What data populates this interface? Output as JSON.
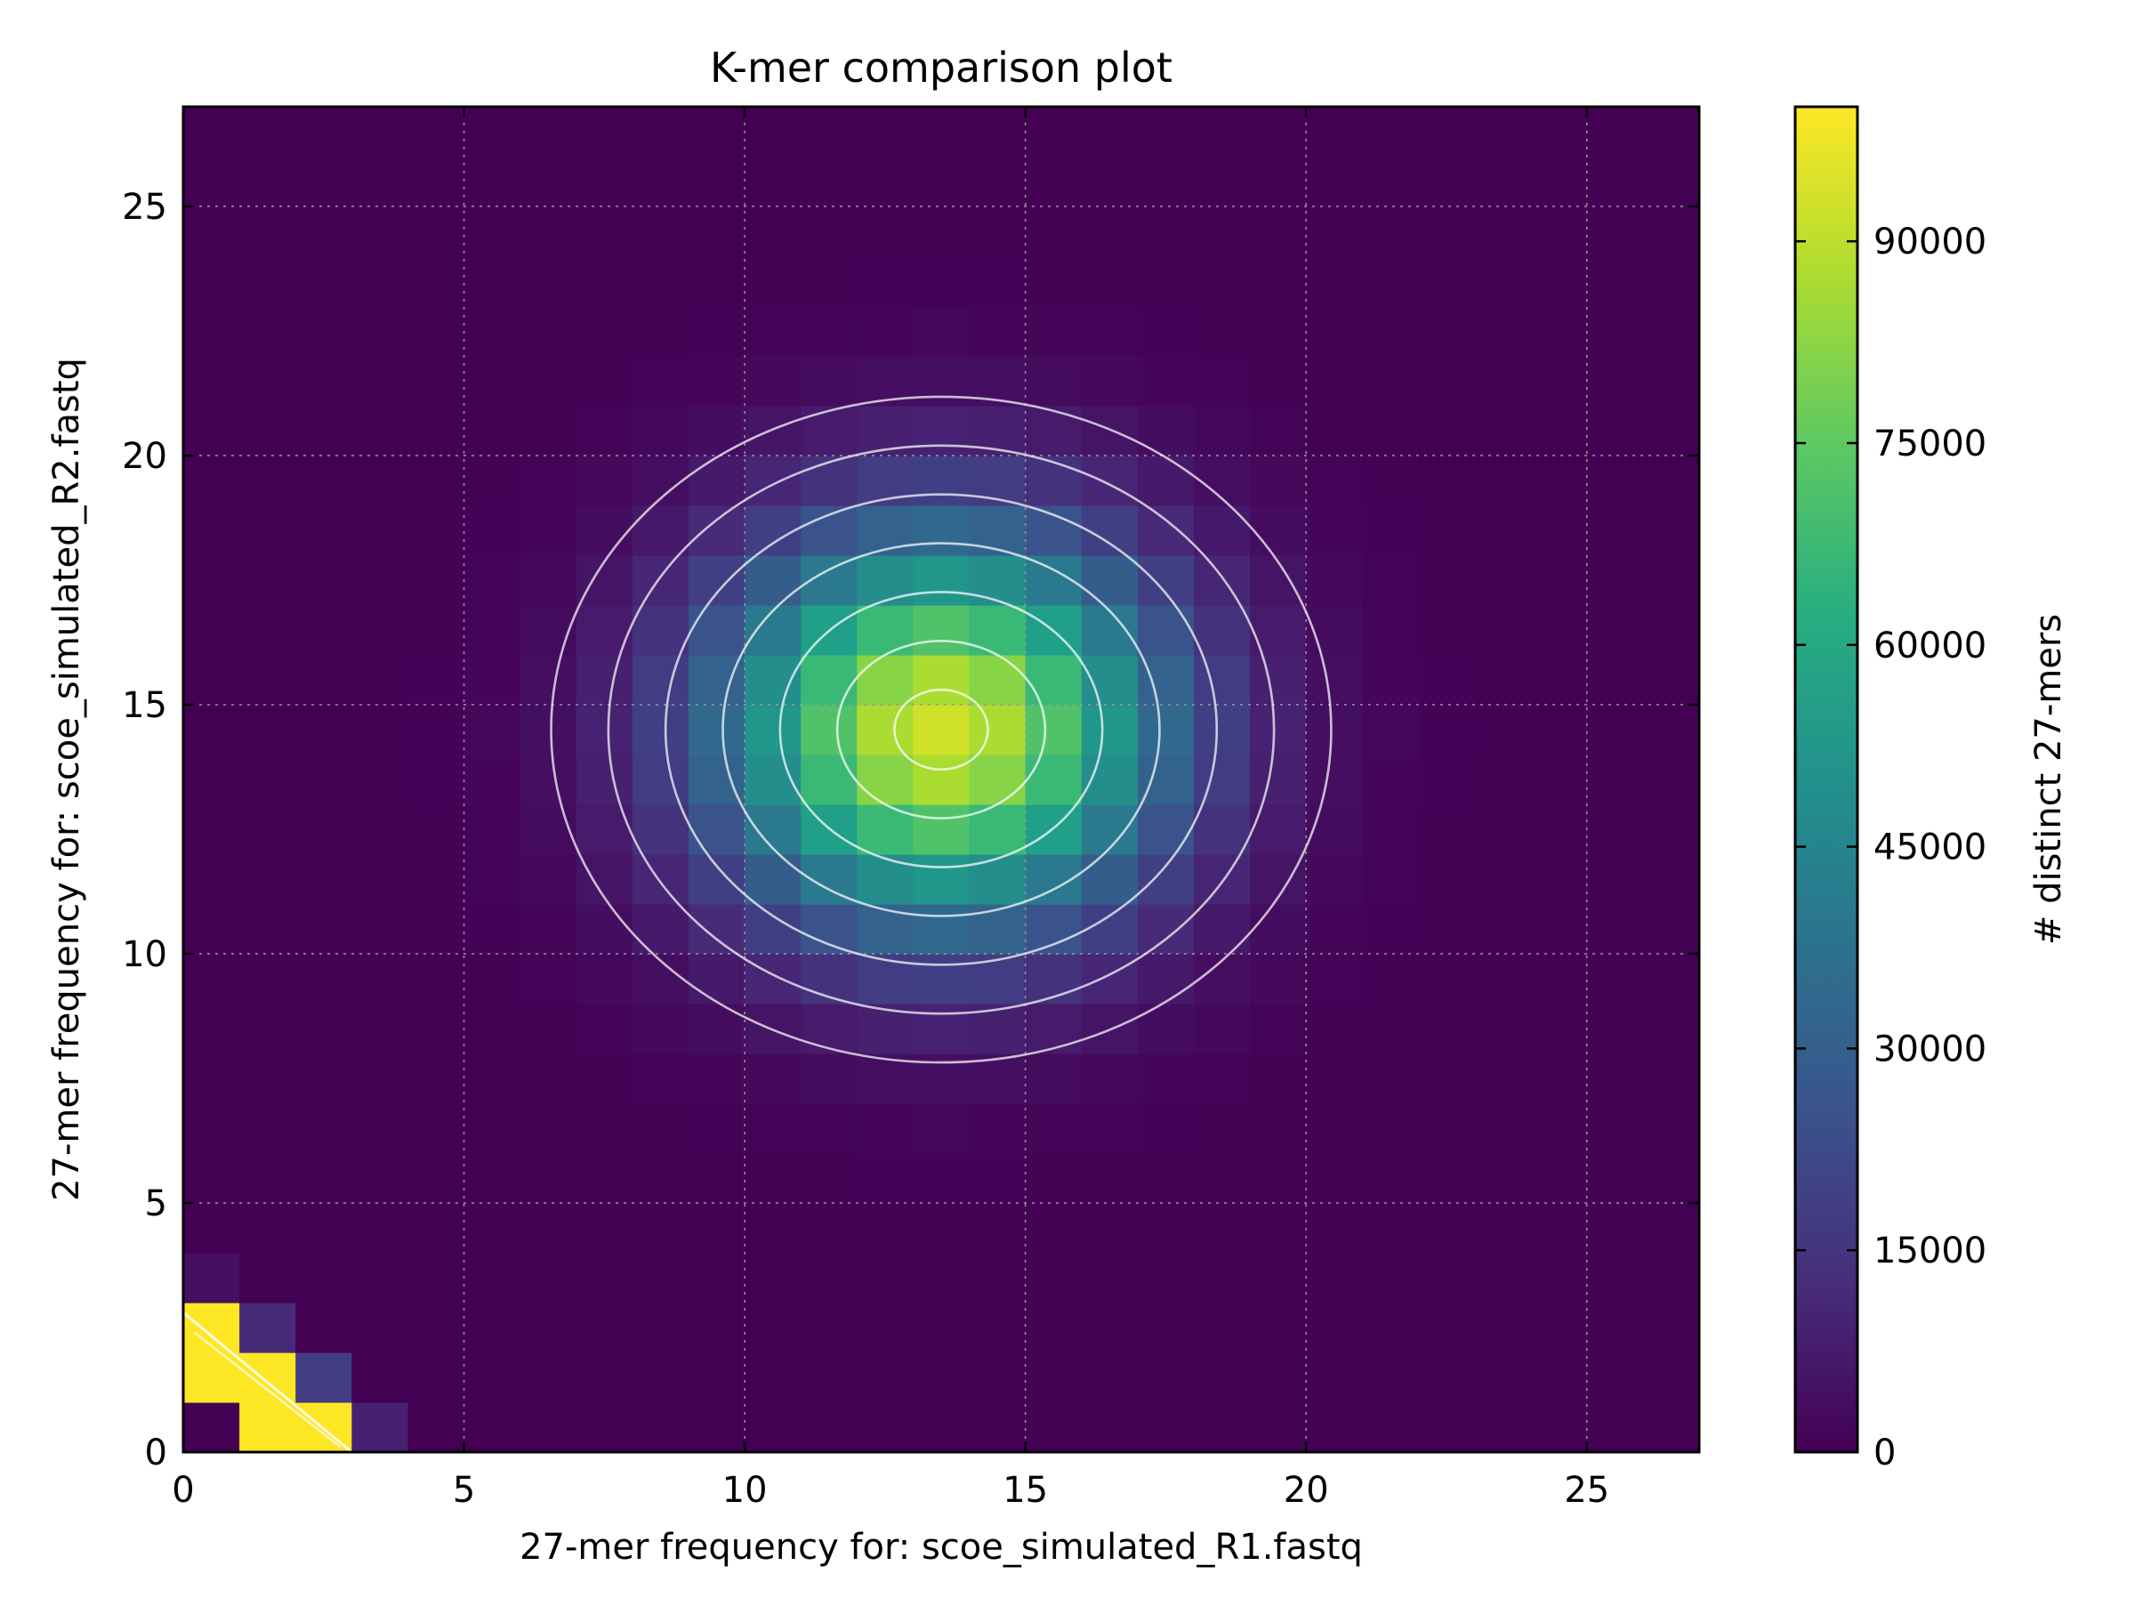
{
  "chart_data": {
    "type": "heatmap",
    "title": "K-mer comparison plot",
    "xlabel": "27-mer frequency for: scoe_simulated_R1.fastq",
    "ylabel": "27-mer frequency for: scoe_simulated_R2.fastq",
    "xlim": [
      0,
      27
    ],
    "ylim": [
      0,
      27
    ],
    "xticks": [
      0,
      5,
      10,
      15,
      20,
      25
    ],
    "yticks": [
      0,
      5,
      10,
      15,
      20,
      25
    ],
    "grid": true,
    "colormap": "viridis",
    "overlay": "contour lines",
    "colorbar": {
      "label": "# distinct 27-mers",
      "range": [
        0,
        100000
      ],
      "ticks": [
        0,
        15000,
        30000,
        45000,
        60000,
        75000,
        90000
      ]
    },
    "peak": {
      "x": 13.5,
      "y": 14.5,
      "value": 93000
    },
    "low_corner_cells": [
      {
        "x": 0,
        "y": 0,
        "value": 0
      },
      {
        "x": 0,
        "y": 1,
        "value": 100000
      },
      {
        "x": 0,
        "y": 2,
        "value": 100000
      },
      {
        "x": 0,
        "y": 3,
        "value": 4000
      },
      {
        "x": 1,
        "y": 0,
        "value": 100000
      },
      {
        "x": 1,
        "y": 1,
        "value": 100000
      },
      {
        "x": 1,
        "y": 2,
        "value": 12000
      },
      {
        "x": 2,
        "y": 0,
        "value": 100000
      },
      {
        "x": 2,
        "y": 1,
        "value": 18000
      },
      {
        "x": 3,
        "y": 0,
        "value": 9000
      }
    ]
  }
}
